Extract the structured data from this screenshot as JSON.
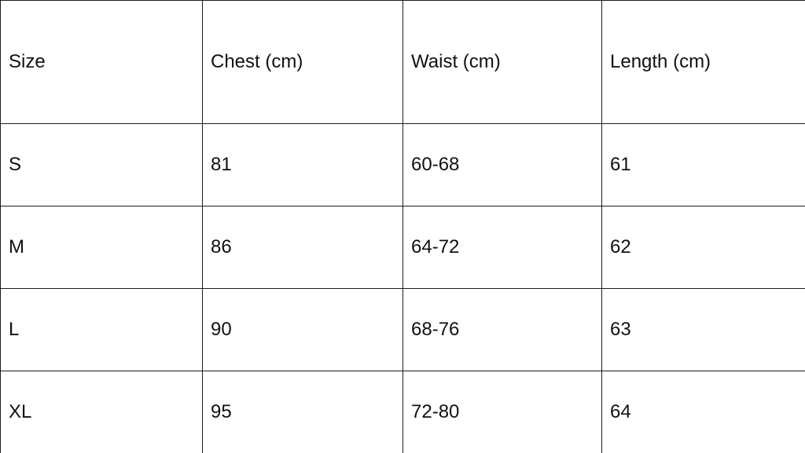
{
  "chart_data": {
    "type": "table",
    "columns": [
      "Size",
      "Chest (cm)",
      "Waist (cm)",
      "Length (cm)"
    ],
    "rows": [
      [
        "S",
        "81",
        "60-68",
        "61"
      ],
      [
        "M",
        "86",
        "64-72",
        "62"
      ],
      [
        "L",
        "90",
        "68-76",
        "63"
      ],
      [
        "XL",
        "95",
        "72-80",
        "64"
      ]
    ],
    "layout": {
      "grid": "all-borders",
      "header_position": "top-row",
      "alignment": "left"
    }
  },
  "colors": {
    "border": "#1c1c1c",
    "text": "#111111",
    "background": "#ffffff"
  }
}
